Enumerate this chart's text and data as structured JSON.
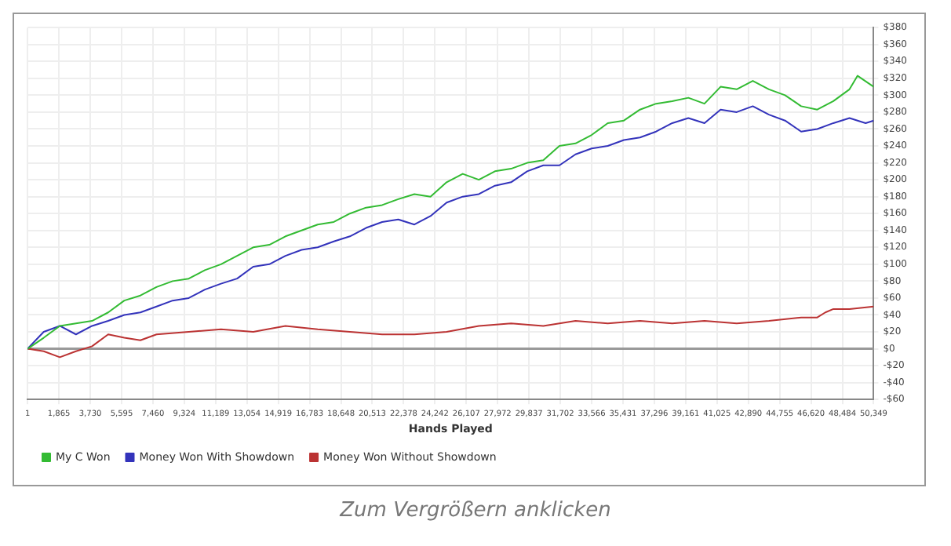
{
  "chart_data": {
    "type": "line",
    "xlabel": "Hands Played",
    "xlim": [
      1,
      50349
    ],
    "xticks": [
      {
        "value": 1,
        "label": "1"
      },
      {
        "value": 1865,
        "label": "1,865"
      },
      {
        "value": 3730,
        "label": "3,730"
      },
      {
        "value": 5595,
        "label": "5,595"
      },
      {
        "value": 7460,
        "label": "7,460"
      },
      {
        "value": 9324,
        "label": "9,324"
      },
      {
        "value": 11189,
        "label": "11,189"
      },
      {
        "value": 13054,
        "label": "13,054"
      },
      {
        "value": 14919,
        "label": "14,919"
      },
      {
        "value": 16783,
        "label": "16,783"
      },
      {
        "value": 18648,
        "label": "18,648"
      },
      {
        "value": 20513,
        "label": "20,513"
      },
      {
        "value": 22378,
        "label": "22,378"
      },
      {
        "value": 24242,
        "label": "24,242"
      },
      {
        "value": 26107,
        "label": "26,107"
      },
      {
        "value": 27972,
        "label": "27,972"
      },
      {
        "value": 29837,
        "label": "29,837"
      },
      {
        "value": 31702,
        "label": "31,702"
      },
      {
        "value": 33566,
        "label": "33,566"
      },
      {
        "value": 35431,
        "label": "35,431"
      },
      {
        "value": 37296,
        "label": "37,296"
      },
      {
        "value": 39161,
        "label": "39,161"
      },
      {
        "value": 41025,
        "label": "41,025"
      },
      {
        "value": 42890,
        "label": "42,890"
      },
      {
        "value": 44755,
        "label": "44,755"
      },
      {
        "value": 46620,
        "label": "46,620"
      },
      {
        "value": 48484,
        "label": "48,484"
      },
      {
        "value": 50349,
        "label": "50,349"
      }
    ],
    "ylim": [
      -60,
      380
    ],
    "yticks": [
      {
        "value": -60,
        "label": "-$60"
      },
      {
        "value": -40,
        "label": "-$40"
      },
      {
        "value": -20,
        "label": "-$20"
      },
      {
        "value": 0,
        "label": "$0"
      },
      {
        "value": 20,
        "label": "$20"
      },
      {
        "value": 40,
        "label": "$40"
      },
      {
        "value": 60,
        "label": "$60"
      },
      {
        "value": 80,
        "label": "$80"
      },
      {
        "value": 100,
        "label": "$100"
      },
      {
        "value": 120,
        "label": "$120"
      },
      {
        "value": 140,
        "label": "$140"
      },
      {
        "value": 160,
        "label": "$160"
      },
      {
        "value": 180,
        "label": "$180"
      },
      {
        "value": 200,
        "label": "$200"
      },
      {
        "value": 220,
        "label": "$220"
      },
      {
        "value": 240,
        "label": "$240"
      },
      {
        "value": 260,
        "label": "$260"
      },
      {
        "value": 280,
        "label": "$280"
      },
      {
        "value": 300,
        "label": "$300"
      },
      {
        "value": 320,
        "label": "$320"
      },
      {
        "value": 340,
        "label": "$340"
      },
      {
        "value": 360,
        "label": "$360"
      },
      {
        "value": 380,
        "label": "$380"
      }
    ],
    "grid": true,
    "legend": "bottom left",
    "marker": "none",
    "line_style": "solid",
    "ref_lines": [
      {
        "axis": "y",
        "value": 0,
        "color": "#999999"
      }
    ],
    "annotations": [
      "Zum Vergrößern anklicken"
    ],
    "series": [
      {
        "name": "My C Won",
        "color": "#33bb33",
        "x": [
          1,
          960,
          1919,
          2878,
          3837,
          4796,
          5755,
          6714,
          7673,
          8632,
          9591,
          10550,
          11509,
          12468,
          13427,
          14386,
          15345,
          16304,
          17263,
          18222,
          19181,
          20140,
          21099,
          22058,
          23017,
          23976,
          24935,
          25894,
          26853,
          27812,
          28771,
          29730,
          30689,
          31648,
          32607,
          33566,
          34525,
          35484,
          36443,
          37402,
          38361,
          39320,
          40279,
          41238,
          42197,
          43156,
          44115,
          45074,
          46033,
          46992,
          47951,
          48910,
          49390,
          50349
        ],
        "values": [
          0,
          13,
          27,
          30,
          33,
          43,
          57,
          63,
          73,
          80,
          83,
          93,
          100,
          110,
          120,
          123,
          133,
          140,
          147,
          150,
          160,
          167,
          170,
          177,
          183,
          180,
          197,
          207,
          200,
          210,
          213,
          220,
          223,
          240,
          243,
          253,
          267,
          270,
          283,
          290,
          293,
          297,
          290,
          310,
          307,
          317,
          307,
          300,
          287,
          283,
          293,
          307,
          323,
          310
        ]
      },
      {
        "name": "Money Won With Showdown",
        "color": "#3333bb",
        "x": [
          1,
          960,
          1919,
          2878,
          3837,
          4796,
          5755,
          6714,
          7673,
          8632,
          9591,
          10550,
          11509,
          12468,
          13427,
          14386,
          15345,
          16304,
          17263,
          18222,
          19181,
          20140,
          21099,
          22058,
          23017,
          23976,
          24935,
          25894,
          26853,
          27812,
          28771,
          29730,
          30689,
          31648,
          32607,
          33566,
          34525,
          35484,
          36443,
          37402,
          38361,
          39320,
          40279,
          41238,
          42197,
          43156,
          44115,
          45074,
          46033,
          46992,
          47951,
          48910,
          49869,
          50349
        ],
        "values": [
          0,
          20,
          27,
          17,
          27,
          33,
          40,
          43,
          50,
          57,
          60,
          70,
          77,
          83,
          97,
          100,
          110,
          117,
          120,
          127,
          133,
          143,
          150,
          153,
          147,
          157,
          173,
          180,
          183,
          193,
          197,
          210,
          217,
          217,
          230,
          237,
          240,
          247,
          250,
          257,
          267,
          273,
          267,
          283,
          280,
          287,
          277,
          270,
          257,
          260,
          267,
          273,
          267,
          270
        ]
      },
      {
        "name": "Money Won Without Showdown",
        "color": "#bb3333",
        "x": [
          1,
          960,
          1919,
          2878,
          3837,
          4796,
          5755,
          6714,
          7673,
          9591,
          11509,
          13427,
          15345,
          17263,
          19181,
          21099,
          23017,
          24935,
          26853,
          28771,
          30689,
          32607,
          34525,
          36443,
          38361,
          40279,
          42197,
          44115,
          46033,
          46992,
          47472,
          47951,
          48910,
          50349
        ],
        "values": [
          0,
          -3,
          -10,
          -3,
          3,
          17,
          13,
          10,
          17,
          20,
          23,
          20,
          27,
          23,
          20,
          17,
          17,
          20,
          27,
          30,
          27,
          33,
          30,
          33,
          30,
          33,
          30,
          33,
          37,
          37,
          43,
          47,
          47,
          50
        ]
      }
    ]
  }
}
